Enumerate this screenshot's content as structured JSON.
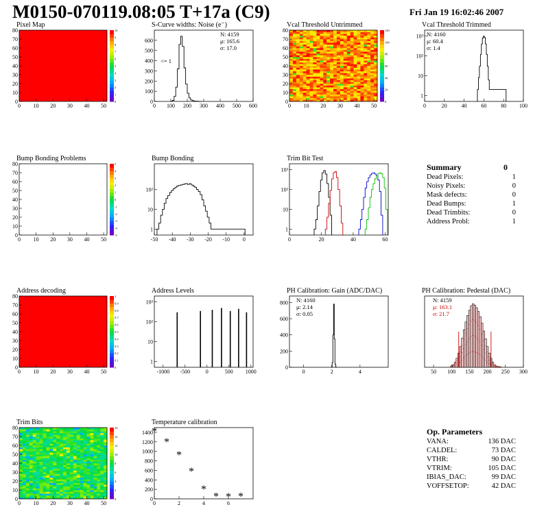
{
  "header": {
    "title": "M0150-070119.08:05 T+17a (C9)",
    "date": "Fri Jan 19 16:02:46 2007"
  },
  "summary": {
    "title": "Summary",
    "total": "0",
    "rows": [
      {
        "label": "Dead Pixels:",
        "value": "1"
      },
      {
        "label": "Noisy Pixels:",
        "value": "0"
      },
      {
        "label": "Mask defects:",
        "value": "0"
      },
      {
        "label": "Dead Bumps:",
        "value": "1"
      },
      {
        "label": "Dead Trimbits:",
        "value": "0"
      },
      {
        "label": "Address Probl:",
        "value": "1"
      }
    ]
  },
  "op_params": {
    "title": "Op. Parameters",
    "rows": [
      {
        "label": "VANA:",
        "value": "136 DAC"
      },
      {
        "label": "CALDEL:",
        "value": "73 DAC"
      },
      {
        "label": "VTHR:",
        "value": "90 DAC"
      },
      {
        "label": "VTRIM:",
        "value": "105 DAC"
      },
      {
        "label": "IBIAS_DAC:",
        "value": "99 DAC"
      },
      {
        "label": "VOFFSETOP:",
        "value": "42 DAC"
      }
    ]
  },
  "chart_data": [
    {
      "id": "pixel_map",
      "type": "heatmap",
      "title": "Pixel Map",
      "xlim": [
        0,
        52
      ],
      "ylim": [
        0,
        80
      ],
      "xticks": [
        "0",
        "10",
        "20",
        "30",
        "40",
        "50"
      ],
      "yticks": [
        "0",
        "10",
        "20",
        "30",
        "40",
        "50",
        "60",
        "70",
        "80"
      ],
      "zticks": [
        "0",
        "1",
        "2",
        "3",
        "4",
        "5",
        "6",
        "7",
        "8",
        "9",
        "10"
      ],
      "fill": "uniform-max",
      "z_value": 10
    },
    {
      "id": "scurve",
      "type": "histogram",
      "title": "S-Curve widths: Noise (e⁻)",
      "xlim": [
        0,
        600
      ],
      "ylim": [
        0,
        700
      ],
      "xticks": [
        "0",
        "100",
        "200",
        "300",
        "400",
        "500",
        "600"
      ],
      "yticks": [
        "0",
        "100",
        "200",
        "300",
        "400",
        "500",
        "600"
      ],
      "stats": [
        "N: 4159",
        "μ: 165.6",
        "σ: 17.0"
      ],
      "annotation": "<= 1",
      "x": [
        105,
        115,
        125,
        135,
        145,
        155,
        165,
        175,
        185,
        195,
        205,
        215,
        225,
        235,
        245,
        255,
        265,
        275,
        285
      ],
      "y": [
        2,
        10,
        50,
        140,
        320,
        560,
        640,
        540,
        330,
        170,
        80,
        35,
        15,
        8,
        4,
        2,
        2,
        1,
        1
      ]
    },
    {
      "id": "vcal_untrimmed",
      "type": "heatmap",
      "title": "Vcal Threshold Untrimmed",
      "xlim": [
        0,
        52
      ],
      "ylim": [
        0,
        80
      ],
      "xticks": [
        "0",
        "10",
        "20",
        "30",
        "40",
        "50"
      ],
      "yticks": [
        "0",
        "10",
        "20",
        "30",
        "40",
        "50",
        "60",
        "70",
        "80"
      ],
      "zticks": [
        "0",
        "20",
        "40",
        "60",
        "80",
        "100",
        "120"
      ],
      "fill": "random-high"
    },
    {
      "id": "vcal_trimmed",
      "type": "histogram",
      "title": "Vcal Threshold Trimmed",
      "log": true,
      "xlim": [
        0,
        100
      ],
      "ylim": [
        0.5,
        2000
      ],
      "xticks": [
        "0",
        "20",
        "40",
        "60",
        "80",
        "100"
      ],
      "yticks": [
        "1",
        "10",
        "10²",
        "10³"
      ],
      "stats": [
        "N: 4160",
        "μ: 60.4",
        "σ:  1.4"
      ],
      "x": [
        54,
        55,
        56,
        57,
        58,
        59,
        60,
        61,
        62,
        63,
        64,
        65,
        66,
        82
      ],
      "y": [
        2,
        8,
        30,
        120,
        400,
        800,
        1000,
        850,
        400,
        120,
        30,
        6,
        2,
        2
      ]
    },
    {
      "id": "bump_problems",
      "type": "heatmap",
      "title": "Bump Bonding Problems",
      "xlim": [
        0,
        52
      ],
      "ylim": [
        0,
        80
      ],
      "xticks": [
        "0",
        "10",
        "20",
        "30",
        "40",
        "50"
      ],
      "yticks": [
        "0",
        "10",
        "20",
        "30",
        "40",
        "50",
        "60",
        "70",
        "80"
      ],
      "zticks": [
        "-5",
        "-4",
        "-3",
        "-2",
        "-1",
        "0",
        "1",
        "2",
        "3",
        "4",
        "5"
      ],
      "fill": "empty"
    },
    {
      "id": "bump_bonding",
      "type": "histogram",
      "title": "Bump Bonding",
      "log": true,
      "xlim": [
        -50,
        5
      ],
      "ylim": [
        0.5,
        2000
      ],
      "xticks": [
        "-50",
        "-40",
        "-30",
        "-20",
        "-10",
        "0"
      ],
      "yticks": [
        "1",
        "10",
        "10²"
      ],
      "x": [
        -48,
        -47,
        -46,
        -45,
        -44,
        -43,
        -42,
        -41,
        -40,
        -39,
        -38,
        -37,
        -36,
        -35,
        -34,
        -33,
        -32,
        -31,
        -30,
        -29,
        -28,
        -27,
        -26,
        -25,
        -24,
        -23,
        -22,
        -21,
        -20,
        -19,
        -18,
        -17,
        -1,
        0
      ],
      "y": [
        1,
        2,
        5,
        10,
        20,
        35,
        50,
        70,
        90,
        110,
        130,
        150,
        160,
        170,
        180,
        190,
        200,
        180,
        200,
        170,
        150,
        130,
        100,
        80,
        55,
        30,
        15,
        8,
        4,
        2,
        1,
        1,
        1,
        1
      ]
    },
    {
      "id": "trim_bit_test",
      "type": "histogram",
      "title": "Trim Bit Test",
      "log": true,
      "xlim": [
        0,
        62
      ],
      "ylim": [
        0.5,
        2000
      ],
      "xticks": [
        "0",
        "20",
        "40",
        "60"
      ],
      "yticks": [
        "1",
        "10",
        "10²",
        "10³"
      ],
      "series": [
        {
          "color": "#000000",
          "x": [
            16,
            17,
            18,
            19,
            20,
            21,
            22,
            23,
            24,
            25,
            26
          ],
          "y": [
            1,
            3,
            15,
            80,
            300,
            700,
            900,
            600,
            200,
            40,
            5
          ]
        },
        {
          "color": "#cc0000",
          "x": [
            23,
            24,
            25,
            26,
            27,
            28,
            29,
            30,
            31,
            32,
            33
          ],
          "y": [
            1,
            4,
            20,
            90,
            350,
            700,
            800,
            400,
            100,
            15,
            2
          ]
        },
        {
          "color": "#0000cc",
          "x": [
            44,
            45,
            46,
            47,
            48,
            49,
            50,
            51,
            52,
            53,
            54,
            55,
            56,
            57,
            58
          ],
          "y": [
            1,
            3,
            10,
            40,
            120,
            250,
            400,
            550,
            650,
            700,
            600,
            500,
            300,
            80,
            5
          ]
        },
        {
          "color": "#00bb00",
          "x": [
            48,
            49,
            50,
            51,
            52,
            53,
            54,
            55,
            56,
            57,
            58,
            59,
            60,
            61
          ],
          "y": [
            1,
            3,
            12,
            40,
            100,
            200,
            350,
            500,
            650,
            700,
            620,
            400,
            120,
            10
          ]
        }
      ]
    },
    {
      "id": "address_decoding",
      "type": "heatmap",
      "title": "Address decoding",
      "xlim": [
        0,
        52
      ],
      "ylim": [
        0,
        80
      ],
      "xticks": [
        "0",
        "10",
        "20",
        "30",
        "40",
        "50"
      ],
      "yticks": [
        "0",
        "10",
        "20",
        "30",
        "40",
        "50",
        "60",
        "70",
        "80"
      ],
      "zticks": [
        "0",
        "0.1",
        "0.2",
        "0.3",
        "0.4",
        "0.5",
        "0.6",
        "0.7",
        "0.8",
        "0.9",
        "1"
      ],
      "fill": "uniform-max",
      "z_value": 1
    },
    {
      "id": "address_levels",
      "type": "histogram",
      "title": "Address Levels",
      "log": true,
      "xlim": [
        -1200,
        1050
      ],
      "ylim": [
        0.5,
        2000
      ],
      "xticks": [
        "-1000",
        "-500",
        "0",
        "500",
        "1000"
      ],
      "yticks": [
        "1",
        "10",
        "10²",
        "10³"
      ],
      "peaks": [
        -680,
        -150,
        120,
        330,
        530,
        720,
        900
      ],
      "peak_heights": [
        300,
        350,
        400,
        500,
        350,
        450,
        300
      ]
    },
    {
      "id": "ph_gain",
      "type": "histogram",
      "title": "PH Calibration: Gain (ADC/DAC)",
      "xlim": [
        -1,
        6
      ],
      "ylim": [
        0,
        880
      ],
      "xticks": [
        "0",
        "2",
        "4"
      ],
      "yticks": [
        "0",
        "200",
        "400",
        "600",
        "800"
      ],
      "stats": [
        "N: 4160",
        "μ: 2.14",
        "σ: 0.05"
      ],
      "x": [
        2.0,
        2.05,
        2.1,
        2.15,
        2.2,
        2.25,
        2.3
      ],
      "y": [
        5,
        60,
        400,
        780,
        350,
        40,
        3
      ]
    },
    {
      "id": "ph_pedestal",
      "type": "histogram",
      "title": "PH Calibration: Pedestal (DAC)",
      "xlim": [
        25,
        300
      ],
      "ylim": [
        0,
        110
      ],
      "xticks": [
        "50",
        "100",
        "150",
        "200",
        "250",
        "300"
      ],
      "yticks": [],
      "stats": [
        "N: 4159",
        "μ: 163.1",
        "σ: 21.7"
      ],
      "stat_colors": [
        "#000000",
        "#cc0000",
        "#cc0000"
      ],
      "x": [
        100,
        105,
        110,
        115,
        120,
        125,
        130,
        135,
        140,
        145,
        150,
        155,
        160,
        165,
        170,
        175,
        180,
        185,
        190,
        195,
        200,
        205,
        210,
        215,
        220,
        225,
        230,
        235
      ],
      "y": [
        2,
        4,
        8,
        14,
        22,
        32,
        45,
        58,
        70,
        80,
        88,
        95,
        98,
        96,
        92,
        86,
        78,
        68,
        56,
        44,
        32,
        22,
        14,
        8,
        4,
        2,
        1,
        1
      ],
      "fit_lines": [
        120,
        210
      ]
    },
    {
      "id": "trim_bits",
      "type": "heatmap",
      "title": "Trim Bits",
      "xlim": [
        0,
        52
      ],
      "ylim": [
        0,
        80
      ],
      "xticks": [
        "0",
        "10",
        "20",
        "30",
        "40",
        "50"
      ],
      "yticks": [
        "0",
        "10",
        "20",
        "30",
        "40",
        "50",
        "60",
        "70",
        "80"
      ],
      "zticks": [
        "0",
        "2",
        "4",
        "6",
        "8",
        "10",
        "12",
        "14",
        "16"
      ],
      "fill": "random-mid"
    },
    {
      "id": "temp_calibration",
      "type": "scatter",
      "title": "Temperature calibration",
      "xlim": [
        0,
        8
      ],
      "ylim": [
        0,
        1500
      ],
      "xticks": [
        "0",
        "2",
        "4",
        "6"
      ],
      "yticks": [
        "0",
        "200",
        "400",
        "600",
        "800",
        "1000",
        "1200",
        "1400"
      ],
      "x": [
        0,
        1,
        2,
        3,
        4,
        5,
        6,
        7
      ],
      "y": [
        1420,
        1200,
        920,
        580,
        200,
        50,
        40,
        50
      ]
    }
  ]
}
